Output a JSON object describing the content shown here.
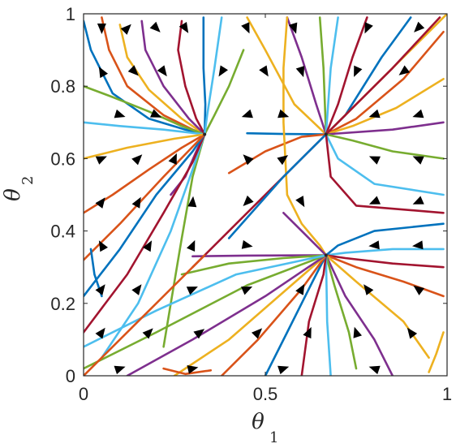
{
  "chart_data": {
    "type": "phase-portrait",
    "xlabel": "θ",
    "xlabel_sub": "1",
    "ylabel": "θ",
    "ylabel_sub": "2",
    "xlim": [
      0,
      1
    ],
    "ylim": [
      0,
      1
    ],
    "xticks": [
      0,
      0.5,
      1
    ],
    "xtick_labels": [
      "0",
      "0.5",
      "1"
    ],
    "yticks": [
      0,
      0.2,
      0.4,
      0.6,
      0.8,
      1
    ],
    "ytick_labels": [
      "0",
      "0.2",
      "0.4",
      "0.6",
      "0.8",
      "1"
    ],
    "grid": false,
    "colors": [
      "#0072BD",
      "#D95319",
      "#EDB120",
      "#7E2F8E",
      "#77AC30",
      "#4DBEEE",
      "#A2142F"
    ],
    "fixed_points": [
      {
        "x": 0.333,
        "y": 0.667
      },
      {
        "x": 0.667,
        "y": 0.667
      },
      {
        "x": 0.667,
        "y": 0.333
      }
    ],
    "trajectories": [
      [
        [
          0.0,
          0.98
        ],
        [
          0.02,
          0.9
        ],
        [
          0.08,
          0.78
        ],
        [
          0.18,
          0.71
        ],
        [
          0.28,
          0.68
        ],
        [
          0.333,
          0.667
        ]
      ],
      [
        [
          0.05,
          0.99
        ],
        [
          0.07,
          0.9
        ],
        [
          0.12,
          0.8
        ],
        [
          0.22,
          0.72
        ],
        [
          0.3,
          0.68
        ],
        [
          0.333,
          0.667
        ]
      ],
      [
        [
          0.1,
          0.97
        ],
        [
          0.12,
          0.88
        ],
        [
          0.18,
          0.79
        ],
        [
          0.27,
          0.71
        ],
        [
          0.333,
          0.667
        ]
      ],
      [
        [
          0.16,
          0.98
        ],
        [
          0.17,
          0.9
        ],
        [
          0.22,
          0.8
        ],
        [
          0.29,
          0.71
        ],
        [
          0.333,
          0.667
        ]
      ],
      [
        [
          0.0,
          0.8
        ],
        [
          0.08,
          0.77
        ],
        [
          0.18,
          0.73
        ],
        [
          0.27,
          0.69
        ],
        [
          0.333,
          0.667
        ]
      ],
      [
        [
          0.0,
          0.7
        ],
        [
          0.1,
          0.69
        ],
        [
          0.22,
          0.68
        ],
        [
          0.333,
          0.667
        ]
      ],
      [
        [
          0.27,
          0.98
        ],
        [
          0.26,
          0.9
        ],
        [
          0.28,
          0.8
        ],
        [
          0.31,
          0.71
        ],
        [
          0.333,
          0.667
        ]
      ],
      [
        [
          0.33,
          0.99
        ],
        [
          0.33,
          0.85
        ],
        [
          0.335,
          0.75
        ],
        [
          0.333,
          0.667
        ]
      ],
      [
        [
          0.0,
          0.45
        ],
        [
          0.08,
          0.5
        ],
        [
          0.18,
          0.57
        ],
        [
          0.27,
          0.63
        ],
        [
          0.333,
          0.667
        ]
      ],
      [
        [
          0.0,
          0.6
        ],
        [
          0.12,
          0.63
        ],
        [
          0.25,
          0.655
        ],
        [
          0.333,
          0.667
        ]
      ],
      [
        [
          0.24,
          0.5
        ],
        [
          0.28,
          0.55
        ],
        [
          0.31,
          0.62
        ],
        [
          0.333,
          0.667
        ]
      ],
      [
        [
          0.22,
          0.08
        ],
        [
          0.24,
          0.2
        ],
        [
          0.27,
          0.38
        ],
        [
          0.3,
          0.55
        ],
        [
          0.333,
          0.667
        ]
      ],
      [
        [
          0.05,
          0.05
        ],
        [
          0.15,
          0.2
        ],
        [
          0.24,
          0.4
        ],
        [
          0.3,
          0.57
        ],
        [
          0.333,
          0.667
        ]
      ],
      [
        [
          0.0,
          0.12
        ],
        [
          0.12,
          0.28
        ],
        [
          0.22,
          0.45
        ],
        [
          0.3,
          0.59
        ],
        [
          0.333,
          0.667
        ]
      ],
      [
        [
          0.0,
          0.22
        ],
        [
          0.1,
          0.35
        ],
        [
          0.2,
          0.5
        ],
        [
          0.3,
          0.62
        ],
        [
          0.333,
          0.667
        ]
      ],
      [
        [
          0.0,
          0.32
        ],
        [
          0.1,
          0.42
        ],
        [
          0.22,
          0.55
        ],
        [
          0.333,
          0.667
        ]
      ],
      [
        [
          0.45,
          0.99
        ],
        [
          0.5,
          0.9
        ],
        [
          0.58,
          0.75
        ],
        [
          0.667,
          0.667
        ]
      ],
      [
        [
          0.56,
          0.99
        ],
        [
          0.6,
          0.88
        ],
        [
          0.64,
          0.75
        ],
        [
          0.667,
          0.667
        ]
      ],
      [
        [
          0.65,
          0.99
        ],
        [
          0.66,
          0.85
        ],
        [
          0.667,
          0.667
        ]
      ],
      [
        [
          0.7,
          0.99
        ],
        [
          0.68,
          0.85
        ],
        [
          0.667,
          0.667
        ]
      ],
      [
        [
          0.78,
          0.99
        ],
        [
          0.74,
          0.88
        ],
        [
          0.7,
          0.75
        ],
        [
          0.667,
          0.667
        ]
      ],
      [
        [
          0.9,
          0.99
        ],
        [
          0.82,
          0.88
        ],
        [
          0.72,
          0.72
        ],
        [
          0.667,
          0.667
        ]
      ],
      [
        [
          0.99,
          0.95
        ],
        [
          0.88,
          0.82
        ],
        [
          0.75,
          0.71
        ],
        [
          0.667,
          0.667
        ]
      ],
      [
        [
          0.99,
          0.82
        ],
        [
          0.86,
          0.74
        ],
        [
          0.74,
          0.69
        ],
        [
          0.667,
          0.667
        ]
      ],
      [
        [
          0.99,
          0.7
        ],
        [
          0.85,
          0.68
        ],
        [
          0.667,
          0.667
        ]
      ],
      [
        [
          0.99,
          0.6
        ],
        [
          0.85,
          0.62
        ],
        [
          0.74,
          0.65
        ],
        [
          0.667,
          0.667
        ]
      ],
      [
        [
          0.99,
          0.5
        ],
        [
          0.8,
          0.53
        ],
        [
          0.7,
          0.6
        ],
        [
          0.667,
          0.667
        ]
      ],
      [
        [
          0.99,
          0.45
        ],
        [
          0.75,
          0.47
        ],
        [
          0.68,
          0.55
        ],
        [
          0.667,
          0.667
        ]
      ],
      [
        [
          0.45,
          0.67
        ],
        [
          0.55,
          0.668
        ],
        [
          0.667,
          0.667
        ]
      ],
      [
        [
          0.4,
          0.56
        ],
        [
          0.5,
          0.62
        ],
        [
          0.6,
          0.66
        ],
        [
          0.667,
          0.667
        ]
      ],
      [
        [
          0.56,
          0.99
        ],
        [
          0.55,
          0.85
        ],
        [
          0.55,
          0.7
        ],
        [
          0.56,
          0.5
        ],
        [
          0.6,
          0.42
        ],
        [
          0.65,
          0.36
        ],
        [
          0.667,
          0.333
        ]
      ],
      [
        [
          0.3,
          0.33
        ],
        [
          0.45,
          0.332
        ],
        [
          0.667,
          0.333
        ]
      ],
      [
        [
          0.27,
          0.28
        ],
        [
          0.4,
          0.31
        ],
        [
          0.55,
          0.325
        ],
        [
          0.667,
          0.333
        ]
      ],
      [
        [
          0.99,
          0.35
        ],
        [
          0.85,
          0.35
        ],
        [
          0.72,
          0.34
        ],
        [
          0.667,
          0.333
        ]
      ],
      [
        [
          0.99,
          0.3
        ],
        [
          0.85,
          0.31
        ],
        [
          0.72,
          0.325
        ],
        [
          0.667,
          0.333
        ]
      ],
      [
        [
          0.99,
          0.42
        ],
        [
          0.8,
          0.4
        ],
        [
          0.7,
          0.36
        ],
        [
          0.667,
          0.333
        ]
      ],
      [
        [
          0.99,
          0.22
        ],
        [
          0.88,
          0.26
        ],
        [
          0.75,
          0.3
        ],
        [
          0.667,
          0.333
        ]
      ],
      [
        [
          0.95,
          0.05
        ],
        [
          0.88,
          0.15
        ],
        [
          0.75,
          0.26
        ],
        [
          0.667,
          0.333
        ]
      ],
      [
        [
          0.85,
          0.0
        ],
        [
          0.8,
          0.1
        ],
        [
          0.72,
          0.22
        ],
        [
          0.667,
          0.333
        ]
      ],
      [
        [
          0.75,
          0.02
        ],
        [
          0.73,
          0.12
        ],
        [
          0.69,
          0.25
        ],
        [
          0.667,
          0.333
        ]
      ],
      [
        [
          0.68,
          0.0
        ],
        [
          0.67,
          0.15
        ],
        [
          0.667,
          0.333
        ]
      ],
      [
        [
          0.6,
          0.0
        ],
        [
          0.62,
          0.15
        ],
        [
          0.66,
          0.28
        ],
        [
          0.667,
          0.333
        ]
      ],
      [
        [
          0.5,
          0.0
        ],
        [
          0.56,
          0.12
        ],
        [
          0.63,
          0.26
        ],
        [
          0.667,
          0.333
        ]
      ],
      [
        [
          0.38,
          0.0
        ],
        [
          0.48,
          0.1
        ],
        [
          0.6,
          0.24
        ],
        [
          0.667,
          0.333
        ]
      ],
      [
        [
          0.25,
          0.0
        ],
        [
          0.4,
          0.1
        ],
        [
          0.56,
          0.24
        ],
        [
          0.667,
          0.333
        ]
      ],
      [
        [
          0.12,
          0.0
        ],
        [
          0.3,
          0.1
        ],
        [
          0.5,
          0.22
        ],
        [
          0.667,
          0.333
        ]
      ],
      [
        [
          0.0,
          0.02
        ],
        [
          0.2,
          0.12
        ],
        [
          0.45,
          0.25
        ],
        [
          0.667,
          0.333
        ]
      ],
      [
        [
          0.0,
          0.08
        ],
        [
          0.2,
          0.18
        ],
        [
          0.42,
          0.28
        ],
        [
          0.667,
          0.333
        ]
      ],
      [
        [
          0.3,
          0.3
        ],
        [
          0.48,
          0.48
        ],
        [
          0.667,
          0.667
        ]
      ],
      [
        [
          0.4,
          0.38
        ],
        [
          0.55,
          0.55
        ],
        [
          0.667,
          0.667
        ]
      ],
      [
        [
          0.0,
          0.0
        ],
        [
          0.16,
          0.16
        ],
        [
          0.333,
          0.333
        ]
      ],
      [
        [
          0.667,
          0.667
        ],
        [
          0.8,
          0.8
        ],
        [
          1.0,
          1.0
        ]
      ],
      [
        [
          0.55,
          0.45
        ],
        [
          0.6,
          0.4
        ],
        [
          0.667,
          0.333
        ]
      ],
      [
        [
          0.44,
          0.9
        ],
        [
          0.4,
          0.8
        ],
        [
          0.36,
          0.72
        ],
        [
          0.333,
          0.667
        ]
      ],
      [
        [
          0.38,
          0.99
        ],
        [
          0.36,
          0.85
        ],
        [
          0.34,
          0.72
        ],
        [
          0.333,
          0.667
        ]
      ],
      [
        [
          0.98,
          0.99
        ],
        [
          0.85,
          0.85
        ],
        [
          0.7,
          0.7
        ],
        [
          0.667,
          0.667
        ]
      ],
      [
        [
          0.02,
          0.35
        ],
        [
          0.03,
          0.28
        ],
        [
          0.05,
          0.22
        ]
      ],
      [
        [
          0.22,
          0.02
        ],
        [
          0.28,
          0.005
        ],
        [
          0.35,
          0.015
        ]
      ],
      [
        [
          0.99,
          0.12
        ],
        [
          0.97,
          0.06
        ],
        [
          0.95,
          0.01
        ]
      ]
    ],
    "arrows": [
      [
        0.05,
        0.96,
        0.0,
        -1.0
      ],
      [
        0.12,
        0.96,
        0.7,
        0.7
      ],
      [
        0.2,
        0.96,
        0.7,
        -0.7
      ],
      [
        0.28,
        0.96,
        0.5,
        -0.8
      ],
      [
        0.45,
        0.96,
        0.4,
        -0.9
      ],
      [
        0.58,
        0.96,
        0.3,
        -0.95
      ],
      [
        0.78,
        0.96,
        -0.4,
        -0.9
      ],
      [
        0.92,
        0.96,
        -0.7,
        -0.7
      ],
      [
        0.05,
        0.84,
        -0.5,
        0.9
      ],
      [
        0.14,
        0.84,
        0.7,
        -0.7
      ],
      [
        0.22,
        0.84,
        0.6,
        -0.8
      ],
      [
        0.38,
        0.84,
        -0.5,
        -0.8
      ],
      [
        0.5,
        0.84,
        0.5,
        -0.8
      ],
      [
        0.6,
        0.84,
        0.3,
        -0.9
      ],
      [
        0.75,
        0.84,
        -0.4,
        -0.9
      ],
      [
        0.88,
        0.84,
        -0.8,
        -0.6
      ],
      [
        0.1,
        0.72,
        0.95,
        -0.3
      ],
      [
        0.2,
        0.72,
        0.9,
        -0.4
      ],
      [
        0.45,
        0.72,
        -0.9,
        -0.3
      ],
      [
        0.55,
        0.72,
        0.9,
        -0.3
      ],
      [
        0.8,
        0.72,
        -0.9,
        -0.3
      ],
      [
        0.92,
        0.72,
        -0.9,
        -0.3
      ],
      [
        0.05,
        0.6,
        0.9,
        0.4
      ],
      [
        0.15,
        0.6,
        0.7,
        0.7
      ],
      [
        0.25,
        0.6,
        0.4,
        0.9
      ],
      [
        0.45,
        0.6,
        -0.7,
        0.7
      ],
      [
        0.55,
        0.6,
        0.8,
        0.6
      ],
      [
        0.8,
        0.6,
        -0.9,
        0.4
      ],
      [
        0.92,
        0.6,
        -0.9,
        0.4
      ],
      [
        0.05,
        0.48,
        0.6,
        0.8
      ],
      [
        0.15,
        0.48,
        0.5,
        0.9
      ],
      [
        0.3,
        0.48,
        0.1,
        1.0
      ],
      [
        0.45,
        0.48,
        -0.7,
        -0.7
      ],
      [
        0.6,
        0.48,
        0.5,
        -0.9
      ],
      [
        0.8,
        0.48,
        -0.9,
        -0.4
      ],
      [
        0.92,
        0.48,
        -0.9,
        -0.4
      ],
      [
        0.05,
        0.36,
        -0.5,
        0.9
      ],
      [
        0.18,
        0.36,
        0.5,
        0.9
      ],
      [
        0.3,
        0.36,
        0.4,
        0.9
      ],
      [
        0.45,
        0.36,
        1.0,
        -0.2
      ],
      [
        0.8,
        0.36,
        -1.0,
        -0.1
      ],
      [
        0.92,
        0.36,
        -1.0,
        -0.1
      ],
      [
        0.05,
        0.24,
        0.6,
        0.8
      ],
      [
        0.15,
        0.24,
        0.6,
        0.8
      ],
      [
        0.3,
        0.24,
        0.9,
        0.4
      ],
      [
        0.45,
        0.24,
        0.9,
        0.4
      ],
      [
        0.6,
        0.24,
        0.5,
        0.9
      ],
      [
        0.78,
        0.24,
        -0.6,
        0.8
      ],
      [
        0.92,
        0.24,
        -0.8,
        0.6
      ],
      [
        0.05,
        0.12,
        0.6,
        0.8
      ],
      [
        0.18,
        0.12,
        0.7,
        0.7
      ],
      [
        0.32,
        0.12,
        0.8,
        0.6
      ],
      [
        0.48,
        0.12,
        0.7,
        0.7
      ],
      [
        0.62,
        0.12,
        0.4,
        0.9
      ],
      [
        0.75,
        0.12,
        -0.3,
        0.95
      ],
      [
        0.9,
        0.12,
        -0.6,
        0.8
      ],
      [
        0.1,
        0.02,
        0.9,
        0.3
      ],
      [
        0.3,
        0.02,
        0.9,
        0.2
      ],
      [
        0.55,
        0.02,
        0.9,
        0.3
      ],
      [
        0.8,
        0.02,
        -0.9,
        0.3
      ]
    ]
  }
}
